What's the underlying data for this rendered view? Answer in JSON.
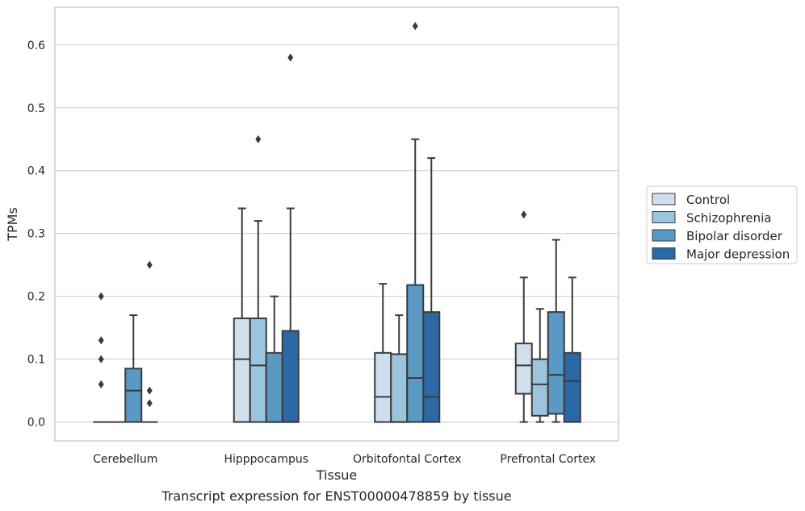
{
  "caption": "Transcript expression for ENST00000478859 by tissue",
  "chart_data": {
    "type": "box",
    "xlabel": "Tissue",
    "ylabel": "TPMs",
    "ylim": [
      -0.03,
      0.66
    ],
    "yticks": [
      0.0,
      0.1,
      0.2,
      0.3,
      0.4,
      0.5,
      0.6
    ],
    "ytick_labels": [
      "0.0",
      "0.1",
      "0.2",
      "0.3",
      "0.4",
      "0.5",
      "0.6"
    ],
    "grid": "horizontal",
    "legend_position": "right",
    "categories": [
      "Cerebellum",
      "Hipppocampus",
      "Orbitofontal Cortex",
      "Prefrontal Cortex"
    ],
    "series": [
      {
        "name": "Control",
        "color": "#d0dfee",
        "boxes": [
          {
            "q1": 0.0,
            "median": 0.0,
            "q3": 0.0,
            "whisker_low": 0.0,
            "whisker_high": 0.0,
            "outliers": [
              0.1,
              0.06,
              0.13,
              0.2
            ]
          },
          {
            "q1": 0.0,
            "median": 0.1,
            "q3": 0.165,
            "whisker_low": 0.0,
            "whisker_high": 0.34,
            "outliers": []
          },
          {
            "q1": 0.0,
            "median": 0.04,
            "q3": 0.11,
            "whisker_low": 0.0,
            "whisker_high": 0.22,
            "outliers": []
          },
          {
            "q1": 0.045,
            "median": 0.09,
            "q3": 0.125,
            "whisker_low": 0.0,
            "whisker_high": 0.23,
            "outliers": [
              0.33
            ]
          }
        ]
      },
      {
        "name": "Schizophrenia",
        "color": "#9bc4dd",
        "boxes": [
          {
            "q1": 0.0,
            "median": 0.0,
            "q3": 0.0,
            "whisker_low": 0.0,
            "whisker_high": 0.0,
            "outliers": []
          },
          {
            "q1": 0.0,
            "median": 0.09,
            "q3": 0.165,
            "whisker_low": 0.0,
            "whisker_high": 0.32,
            "outliers": [
              0.45
            ]
          },
          {
            "q1": 0.0,
            "median": 0.0,
            "q3": 0.108,
            "whisker_low": 0.0,
            "whisker_high": 0.17,
            "outliers": []
          },
          {
            "q1": 0.01,
            "median": 0.06,
            "q3": 0.1,
            "whisker_low": 0.0,
            "whisker_high": 0.18,
            "outliers": []
          }
        ]
      },
      {
        "name": "Bipolar disorder",
        "color": "#5999c4",
        "boxes": [
          {
            "q1": 0.0,
            "median": 0.05,
            "q3": 0.085,
            "whisker_low": 0.0,
            "whisker_high": 0.17,
            "outliers": []
          },
          {
            "q1": 0.0,
            "median": 0.0,
            "q3": 0.11,
            "whisker_low": 0.0,
            "whisker_high": 0.2,
            "outliers": []
          },
          {
            "q1": 0.0,
            "median": 0.07,
            "q3": 0.218,
            "whisker_low": 0.0,
            "whisker_high": 0.45,
            "outliers": [
              0.63
            ]
          },
          {
            "q1": 0.013,
            "median": 0.075,
            "q3": 0.175,
            "whisker_low": 0.0,
            "whisker_high": 0.29,
            "outliers": []
          }
        ]
      },
      {
        "name": "Major depression",
        "color": "#2a68a6",
        "boxes": [
          {
            "q1": 0.0,
            "median": 0.0,
            "q3": 0.0,
            "whisker_low": 0.0,
            "whisker_high": 0.0,
            "outliers": [
              0.03,
              0.05,
              0.25
            ]
          },
          {
            "q1": 0.0,
            "median": 0.0,
            "q3": 0.145,
            "whisker_low": 0.0,
            "whisker_high": 0.34,
            "outliers": [
              0.58
            ]
          },
          {
            "q1": 0.0,
            "median": 0.04,
            "q3": 0.175,
            "whisker_low": 0.0,
            "whisker_high": 0.42,
            "outliers": []
          },
          {
            "q1": 0.0,
            "median": 0.065,
            "q3": 0.11,
            "whisker_low": 0.0,
            "whisker_high": 0.23,
            "outliers": []
          }
        ]
      }
    ]
  }
}
